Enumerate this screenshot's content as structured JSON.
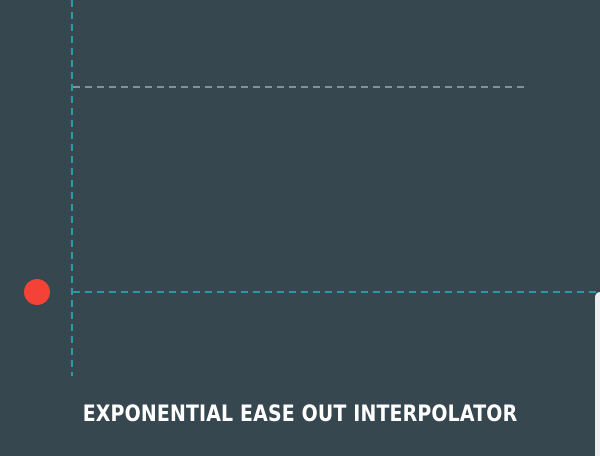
{
  "screen": {
    "title": "EXPONENTIAL EASE OUT INTERPOLATOR"
  },
  "colors": {
    "background": "#37474f",
    "accent_guides": "#26c6da",
    "target_guide": "#b0bec5",
    "dot": "#f44336",
    "text": "#ffffff"
  }
}
